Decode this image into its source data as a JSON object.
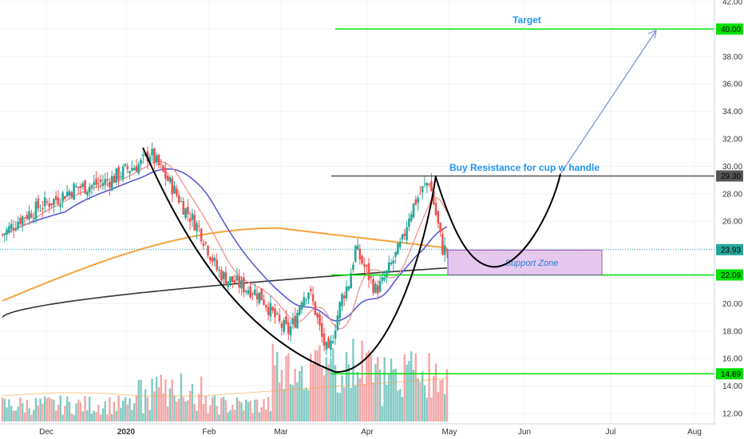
{
  "chart_data": {
    "type": "candlestick",
    "x_labels": [
      "Dec",
      "2020",
      "Feb",
      "Mar",
      "Apr",
      "May",
      "Jun",
      "Jul",
      "Aug"
    ],
    "y_ticks": [
      12.0,
      14.0,
      16.0,
      18.0,
      20.0,
      22.0,
      24.0,
      26.0,
      28.0,
      30.0,
      32.0,
      34.0,
      36.0,
      38.0,
      40.0,
      42.0
    ],
    "ylim": [
      11.8,
      42.0
    ],
    "price_tags": [
      {
        "value": 40.0,
        "label": "40.00",
        "bg": "#00e000"
      },
      {
        "value": 29.3,
        "label": "29.30",
        "bg": "#555555"
      },
      {
        "value": 23.93,
        "label": "23.93",
        "bg": "#26a69a"
      },
      {
        "value": 22.09,
        "label": "22.09",
        "bg": "#00e000"
      },
      {
        "value": 14.89,
        "label": "14.89",
        "bg": "#00e000"
      }
    ],
    "horizontal_lines": [
      {
        "value": 40.0,
        "color": "#00e000",
        "x_start": 420
      },
      {
        "value": 29.3,
        "color": "#555555",
        "x_start": 415
      },
      {
        "value": 22.09,
        "color": "#00e000",
        "x_start": 415
      },
      {
        "value": 14.89,
        "color": "#00e000",
        "x_start": 415
      }
    ],
    "last_price_line": 23.93,
    "annotations": {
      "target": "Target",
      "resistance": "Buy Resistance for cup w handle",
      "support": "Support Zone"
    },
    "support_zone": {
      "top": 23.9,
      "bottom": 22.1
    },
    "colors": {
      "up": "#26a69a",
      "down": "#ef5350",
      "volume_up": "#80cbc4",
      "volume_down": "#f4a6a6",
      "ma_fast": "#ef8a8a",
      "ma_mid": "#5b5bd6",
      "ma_slow": "#f5a33c",
      "ma_long": "#333333",
      "cup": "#000000",
      "arrow": "#7b8fd6",
      "zone_fill": "#e4c8ee",
      "zone_border": "#9c4fb8"
    }
  }
}
